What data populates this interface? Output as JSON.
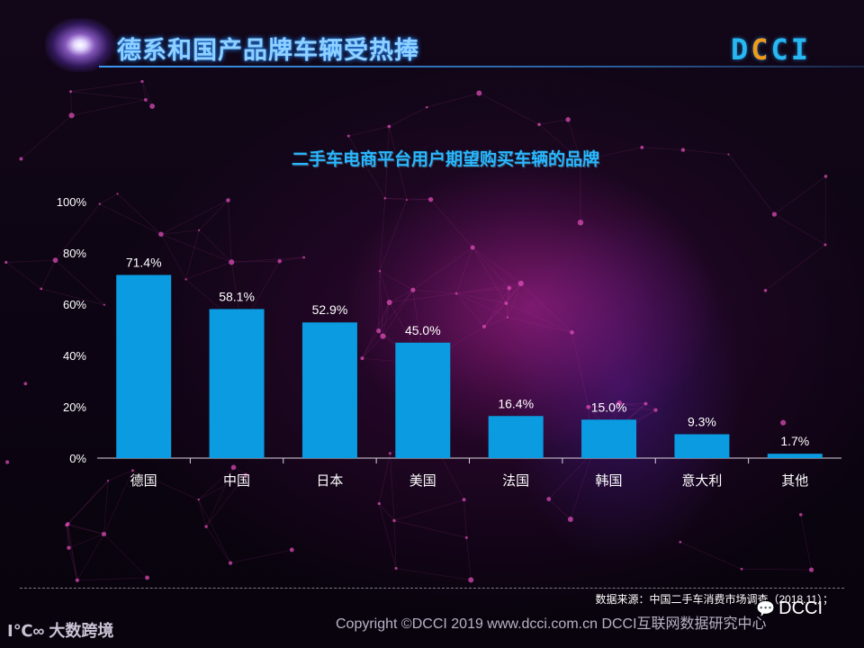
{
  "header": {
    "title": "德系和国产品牌车辆受热捧",
    "logo_text": "DCCI"
  },
  "chart_data": {
    "type": "bar",
    "title": "二手车电商平台用户期望购买车辆的品牌",
    "categories": [
      "德国",
      "中国",
      "日本",
      "美国",
      "法国",
      "韩国",
      "意大利",
      "其他"
    ],
    "values": [
      71.4,
      58.1,
      52.9,
      45.0,
      16.4,
      15.0,
      9.3,
      1.7
    ],
    "data_labels": [
      "71.4%",
      "58.1%",
      "52.9%",
      "45.0%",
      "16.4%",
      "15.0%",
      "9.3%",
      "1.7%"
    ],
    "ylim": [
      0,
      100
    ],
    "yticks": [
      0,
      20,
      40,
      60,
      80,
      100
    ],
    "ytick_labels": [
      "0%",
      "20%",
      "40%",
      "60%",
      "80%",
      "100%"
    ],
    "xlabel": "",
    "ylabel": "",
    "grid": false,
    "bar_color": "#0a9be0"
  },
  "footer": {
    "source": "数据来源：中国二手车消费市场调查（2018.11）；",
    "copyright": "Copyright ©DCCI 2019  www.dcci.com.cn   DCCI互联网数据研究中心",
    "brand": "大数跨境",
    "brand_mark": "Ⅰ℃∞",
    "wechat_label": "DCCI"
  },
  "colors": {
    "title": "#8fd0ff",
    "accent_line": "#3ca0ff",
    "logo_blue": "#27b8f2",
    "logo_orange": "#f09a1d"
  }
}
